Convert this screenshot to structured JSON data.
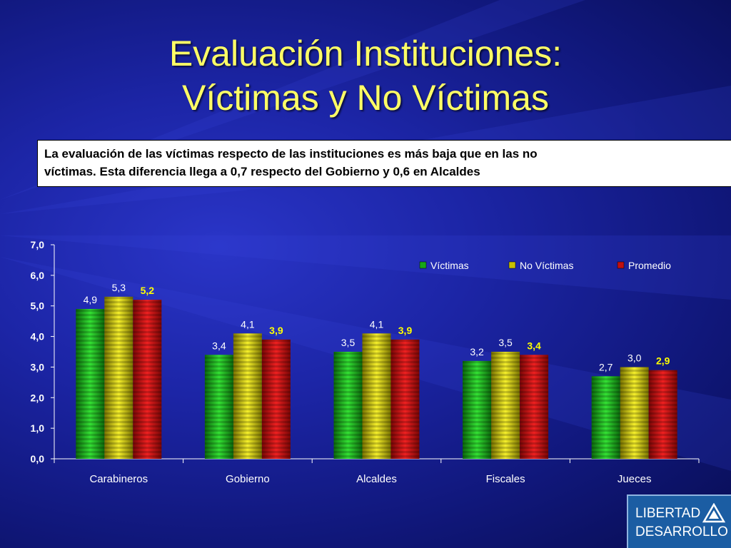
{
  "title": {
    "line1": "Evaluación Instituciones:",
    "line2": "Víctimas y No Víctimas"
  },
  "note": {
    "line1": "La evaluación de  las víctimas respecto de las instituciones es más baja que en las no",
    "line2": "víctimas. Esta diferencia llega a 0,7 respecto del Gobierno y 0,6 en Alcaldes"
  },
  "logo": {
    "line1": "LIBERTAD",
    "line2": "DESARROLLO",
    "icon": "triangle-logo-icon"
  },
  "chart_data": {
    "type": "bar",
    "categories": [
      "Carabineros",
      "Gobierno",
      "Alcaldes",
      "Fiscales",
      "Jueces"
    ],
    "series": [
      {
        "name": "Víctimas",
        "values": [
          4.9,
          3.4,
          3.5,
          3.2,
          2.7
        ],
        "labels": [
          "4,9",
          "3,4",
          "3,5",
          "3,2",
          "2,7"
        ],
        "color": "#18a818"
      },
      {
        "name": "No Víctimas",
        "values": [
          5.3,
          4.1,
          4.1,
          3.5,
          3.0
        ],
        "labels": [
          "5,3",
          "4,1",
          "4,1",
          "3,5",
          "3,0"
        ],
        "color": "#c8c000"
      },
      {
        "name": "Promedio",
        "values": [
          5.2,
          3.9,
          3.9,
          3.4,
          2.9
        ],
        "labels": [
          "5,2",
          "3,9",
          "3,9",
          "3,4",
          "2,9"
        ],
        "color": "#c01010"
      }
    ],
    "ylim": [
      0,
      7
    ],
    "yticks": [
      "0,0",
      "1,0",
      "2,0",
      "3,0",
      "4,0",
      "5,0",
      "6,0",
      "7,0"
    ],
    "legend_position": "top-right",
    "grid": false,
    "label_colors": {
      "default": "#ffffff",
      "Promedio": "#ffff00"
    }
  }
}
